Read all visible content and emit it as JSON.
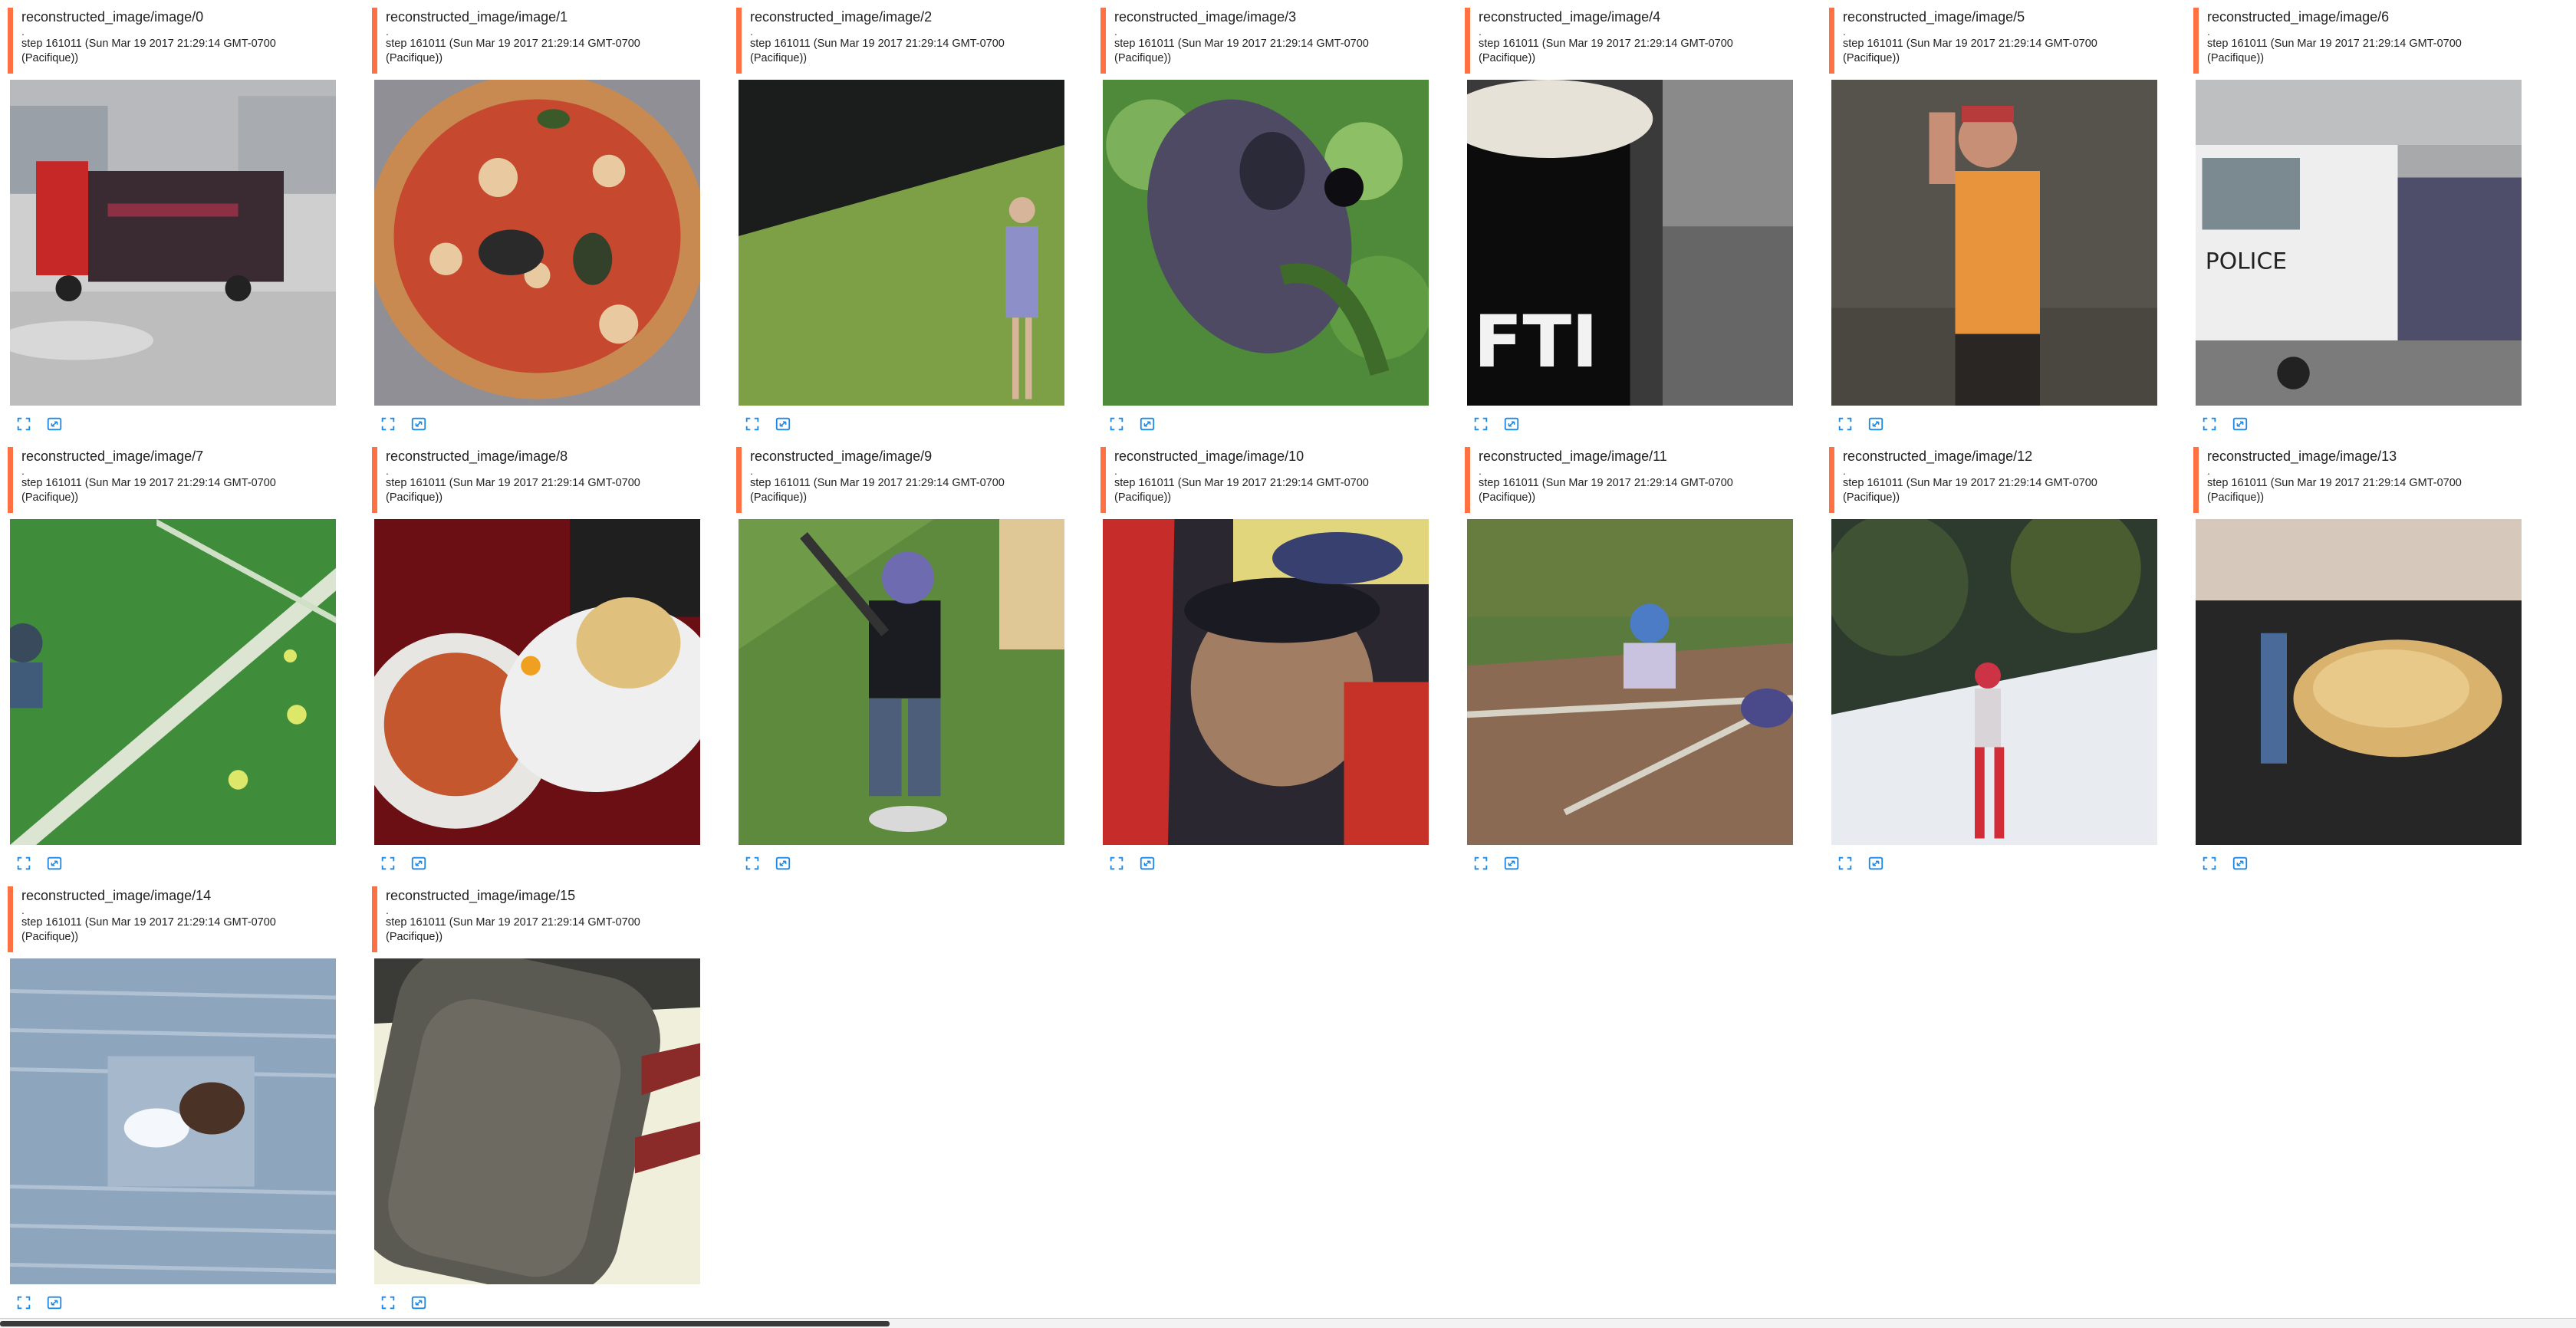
{
  "cards": [
    {
      "tag": "reconstructed_image/image/0",
      "dot": ".",
      "step": "step 161011 (Sun Mar 19 2017 21:29:14 GMT-0700 (Pacifique))",
      "scene": "street-truck"
    },
    {
      "tag": "reconstructed_image/image/1",
      "dot": ".",
      "step": "step 161011 (Sun Mar 19 2017 21:29:14 GMT-0700 (Pacifique))",
      "scene": "pizza"
    },
    {
      "tag": "reconstructed_image/image/2",
      "dot": ".",
      "step": "step 161011 (Sun Mar 19 2017 21:29:14 GMT-0700 (Pacifique))",
      "scene": "tennis-player"
    },
    {
      "tag": "reconstructed_image/image/3",
      "dot": ".",
      "step": "step 161011 (Sun Mar 19 2017 21:29:14 GMT-0700 (Pacifique))",
      "scene": "bird-in-leaves"
    },
    {
      "tag": "reconstructed_image/image/4",
      "dot": ".",
      "step": "step 161011 (Sun Mar 19 2017 21:29:14 GMT-0700 (Pacifique))",
      "scene": "mug"
    },
    {
      "tag": "reconstructed_image/image/5",
      "dot": ".",
      "step": "step 161011 (Sun Mar 19 2017 21:29:14 GMT-0700 (Pacifique))",
      "scene": "person-orange-shirt"
    },
    {
      "tag": "reconstructed_image/image/6",
      "dot": ".",
      "step": "step 161011 (Sun Mar 19 2017 21:29:14 GMT-0700 (Pacifique))",
      "scene": "police-truck"
    },
    {
      "tag": "reconstructed_image/image/7",
      "dot": ".",
      "step": "step 161011 (Sun Mar 19 2017 21:29:14 GMT-0700 (Pacifique))",
      "scene": "soccer-field"
    },
    {
      "tag": "reconstructed_image/image/8",
      "dot": ".",
      "step": "step 161011 (Sun Mar 19 2017 21:29:14 GMT-0700 (Pacifique))",
      "scene": "plates-food"
    },
    {
      "tag": "reconstructed_image/image/9",
      "dot": ".",
      "step": "step 161011 (Sun Mar 19 2017 21:29:14 GMT-0700 (Pacifique))",
      "scene": "batter"
    },
    {
      "tag": "reconstructed_image/image/10",
      "dot": ".",
      "step": "step 161011 (Sun Mar 19 2017 21:29:14 GMT-0700 (Pacifique))",
      "scene": "blurry-person"
    },
    {
      "tag": "reconstructed_image/image/11",
      "dot": ".",
      "step": "step 161011 (Sun Mar 19 2017 21:29:14 GMT-0700 (Pacifique))",
      "scene": "baseball-slide"
    },
    {
      "tag": "reconstructed_image/image/12",
      "dot": ".",
      "step": "step 161011 (Sun Mar 19 2017 21:29:14 GMT-0700 (Pacifique))",
      "scene": "skier"
    },
    {
      "tag": "reconstructed_image/image/13",
      "dot": ".",
      "step": "step 161011 (Sun Mar 19 2017 21:29:14 GMT-0700 (Pacifique))",
      "scene": "oven-food"
    },
    {
      "tag": "reconstructed_image/image/14",
      "dot": ".",
      "step": "step 161011 (Sun Mar 19 2017 21:29:14 GMT-0700 (Pacifique))",
      "scene": "surfer-water"
    },
    {
      "tag": "reconstructed_image/image/15",
      "dot": ".",
      "step": "step 161011 (Sun Mar 19 2017 21:29:14 GMT-0700 (Pacifique))",
      "scene": "suitcase"
    }
  ],
  "icons": {
    "fullscreen": "fullscreen-icon",
    "fit": "fit-image-icon"
  },
  "colors": {
    "accent_bar": "#ff7043",
    "icon_blue": "#1e88e5"
  }
}
